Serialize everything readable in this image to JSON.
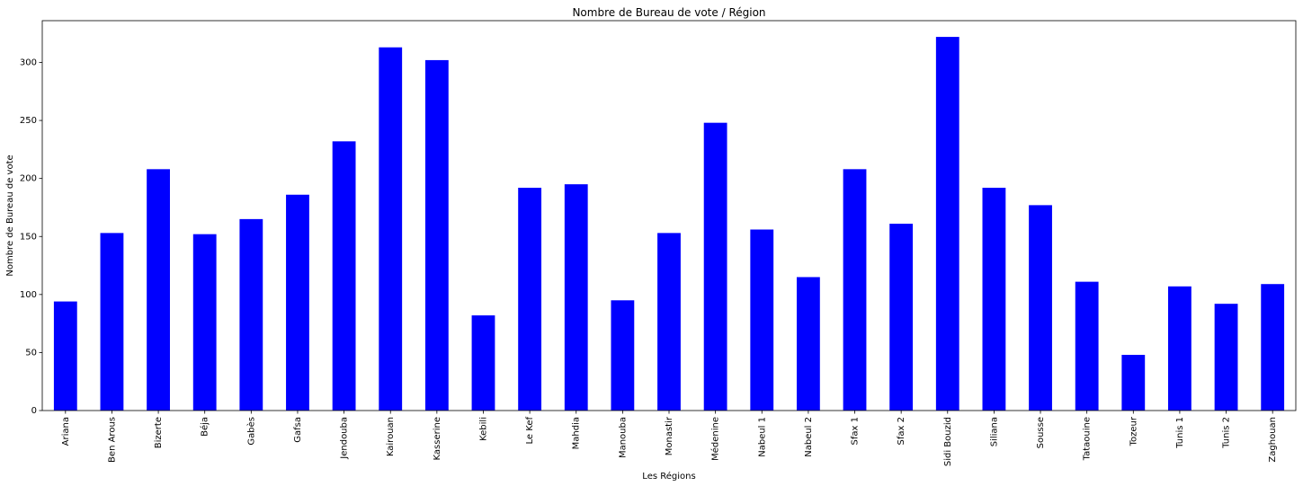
{
  "chart_data": {
    "type": "bar",
    "title": "Nombre de Bureau de vote / Région",
    "xlabel": "Les Régions",
    "ylabel": "Nombre de Bureau de vote",
    "ylim": [
      0,
      336
    ],
    "yticks": [
      0,
      50,
      100,
      150,
      200,
      250,
      300
    ],
    "grid": false,
    "bar_color": "#0000ff",
    "categories": [
      "Ariana",
      "Ben Arous",
      "Bizerte",
      "Béja",
      "Gabès",
      "Gafsa",
      "Jendouba",
      "Kairouan",
      "Kasserine",
      "Kebili",
      "Le Kef",
      "Mahdia",
      "Manouba",
      "Monastir",
      "Médenine",
      "Nabeul 1",
      "Nabeul 2",
      "Sfax 1",
      "Sfax 2",
      "Sidi Bouzid",
      "Siliana",
      "Sousse",
      "Tataouine",
      "Tozeur",
      "Tunis 1",
      "Tunis 2",
      "Zaghouan"
    ],
    "values": [
      94,
      153,
      208,
      152,
      165,
      186,
      232,
      313,
      302,
      82,
      192,
      195,
      95,
      153,
      248,
      156,
      115,
      208,
      161,
      322,
      192,
      177,
      111,
      48,
      107,
      92,
      109
    ]
  }
}
